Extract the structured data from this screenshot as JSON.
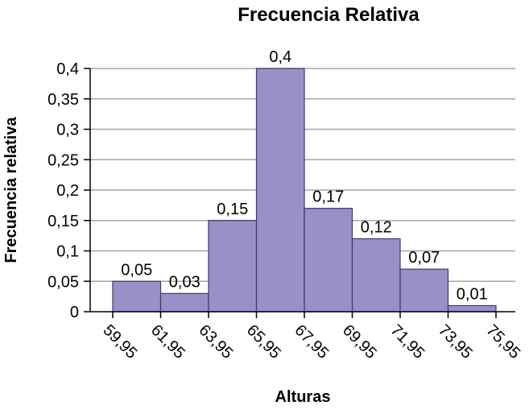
{
  "chart_data": {
    "type": "bar",
    "title": "Frecuencia Relativa",
    "xlabel": "Alturas",
    "ylabel": "Frecuencia relativa",
    "bin_edges": [
      59.95,
      61.95,
      63.95,
      65.95,
      67.95,
      69.95,
      71.95,
      73.95,
      75.95
    ],
    "x_tick_labels": [
      "59,95",
      "61,95",
      "63,95",
      "65,95",
      "67,95",
      "69,95",
      "71,95",
      "73,95",
      "75,95"
    ],
    "values": [
      0.05,
      0.03,
      0.15,
      0.4,
      0.17,
      0.12,
      0.07,
      0.01
    ],
    "data_labels": [
      "0,05",
      "0,03",
      "0,15",
      "0,4",
      "0,17",
      "0,12",
      "0,07",
      "0,01"
    ],
    "ylim": [
      0,
      0.4
    ],
    "y_ticks": [
      0,
      0.05,
      0.1,
      0.15,
      0.2,
      0.25,
      0.3,
      0.35,
      0.4
    ],
    "y_tick_labels": [
      "0",
      "0,05",
      "0,1",
      "0,15",
      "0,2",
      "0,25",
      "0,3",
      "0,35",
      "0,4"
    ],
    "grid": true,
    "colors": {
      "bar_fill": "#9a8fc7",
      "bar_stroke": "#3f3a63",
      "grid": "#a6a6a6",
      "axis": "#000000",
      "text": "#000000"
    }
  }
}
